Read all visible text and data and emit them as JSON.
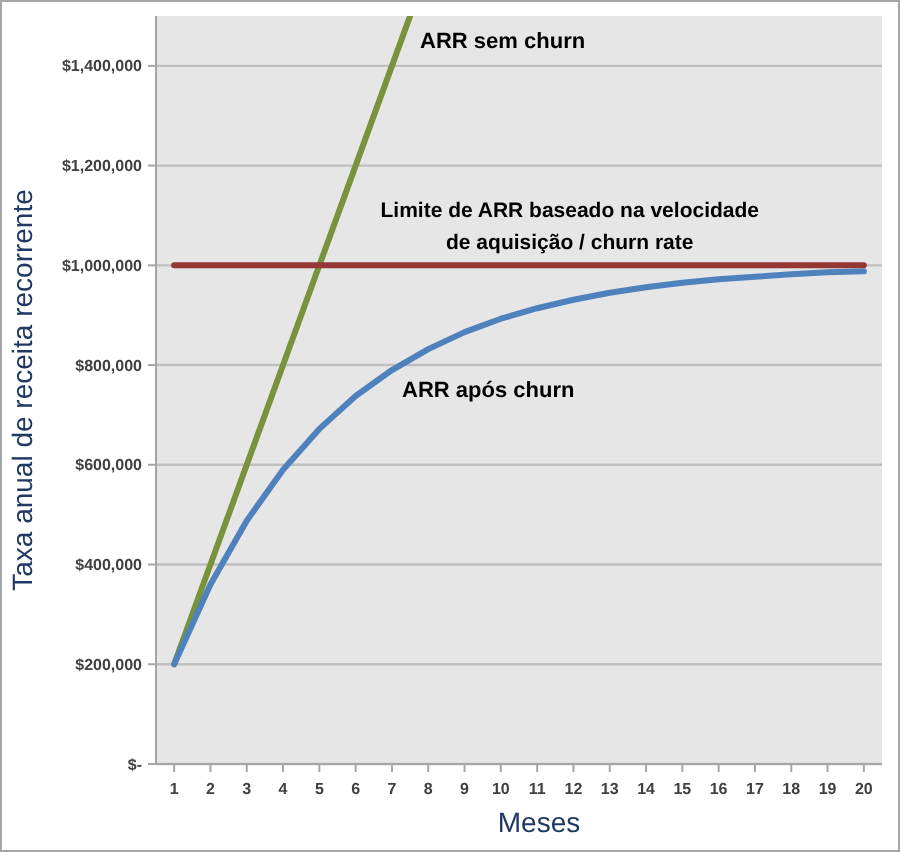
{
  "chart_data": {
    "type": "line",
    "xlabel": "Meses",
    "ylabel": "Taxa anual de receita recorrente",
    "x": [
      1,
      2,
      3,
      4,
      5,
      6,
      7,
      8,
      9,
      10,
      11,
      12,
      13,
      14,
      15,
      16,
      17,
      18,
      19,
      20
    ],
    "xlim": [
      0.5,
      20.5
    ],
    "xticks": [
      1,
      2,
      3,
      4,
      5,
      6,
      7,
      8,
      9,
      10,
      11,
      12,
      13,
      14,
      15,
      16,
      17,
      18,
      19,
      20
    ],
    "ylim": [
      0,
      1500000
    ],
    "yticks": [
      {
        "value": 0,
        "label": "$-"
      },
      {
        "value": 200000,
        "label": "$200,000"
      },
      {
        "value": 400000,
        "label": "$400,000"
      },
      {
        "value": 600000,
        "label": "$600,000"
      },
      {
        "value": 800000,
        "label": "$800,000"
      },
      {
        "value": 1000000,
        "label": "$1,000,000"
      },
      {
        "value": 1200000,
        "label": "$1,200,000"
      },
      {
        "value": 1400000,
        "label": "$1,400,000"
      }
    ],
    "grid": "y",
    "marker": "none",
    "line_style": "solid",
    "series": [
      {
        "name": "ARR sem churn",
        "color": "#77933c",
        "x": [
          1,
          2,
          3,
          4,
          5,
          6,
          7,
          7.5
        ],
        "values": [
          200000,
          400000,
          600000,
          800000,
          1000000,
          1200000,
          1400000,
          1500000
        ]
      },
      {
        "name": "Limite de ARR baseado na velocidade de aquisição / churn rate",
        "color": "#953735",
        "values": [
          1000000,
          1000000,
          1000000,
          1000000,
          1000000,
          1000000,
          1000000,
          1000000,
          1000000,
          1000000,
          1000000,
          1000000,
          1000000,
          1000000,
          1000000,
          1000000,
          1000000,
          1000000,
          1000000,
          1000000
        ]
      },
      {
        "name": "ARR após churn",
        "color": "#4f81bd",
        "values": [
          200000,
          360000,
          488000,
          590000,
          672000,
          738000,
          790000,
          832000,
          866000,
          893000,
          914000,
          931000,
          945000,
          956000,
          965000,
          972000,
          977000,
          982000,
          986000,
          988000
        ]
      }
    ]
  }
}
